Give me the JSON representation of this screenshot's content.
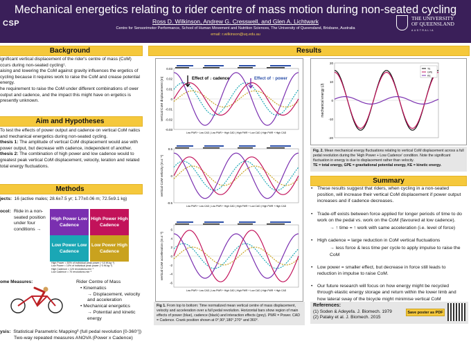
{
  "header": {
    "title": "Mechanical energetics relating to rider centre of mass motion during non-seated cycling",
    "authors": "Ross D. Wilkinson, Andrew G. Cresswell, and Glen A. Lichtwark",
    "institution": "Centre for Sensorimotor Performance, School of Human Movement and Nutrition Sciences, The University of Queensland, Brisbane, Australia",
    "email": "email: r.wilkinson@uq.edu.au",
    "left_logo": "CSP",
    "right_logo_line1": "THE UNIVERSITY",
    "right_logo_line2": "OF QUEENSLAND",
    "right_logo_line3": "AUSTRALIA"
  },
  "background": {
    "heading": "Background",
    "p1": "ignificant vertical displacement of the rider's centre of mass (CoM) ccurs during non-seated cycling¹.",
    "p2": "aising and lowering the CoM against gravity influences the ergetics of cycling because it requires work to raise the CoM and crease potential energy.",
    "p3": "he requirement to raise the CoM under different combinations of ower output and cadence, and the impact this might have on ergetics is presently unknown."
  },
  "aims": {
    "heading": "Aim and Hypotheses",
    "p1": "To test the effects of power output and cadence on vertical CoM natics and mechanical energetics during non-seated cycling.",
    "h1_label": "thesis 1:",
    "h1": "The amplitude of vertical CoM displacement would ase with power output, but decrease with cadence, independent of another.",
    "h2_label": "thesis 2:",
    "h2": "The combination of high power and low cadence would to greatest peak vertical CoM displacement, velocity, leration and related total energy fluctuations."
  },
  "methods": {
    "heading": "Methods",
    "subjects_label": "jects:",
    "subjects": "16 (active males; 28.6±7.5 yr; 1.77±0.06 m; 72.5±9.1 kg)",
    "protocol_label": "ocol:",
    "protocol": "Ride in a non-seated position under four conditions →",
    "conditions": [
      {
        "label": "High Power Low Cadence",
        "color": "#7a2fb0"
      },
      {
        "label": "High Power High Cadence",
        "color": "#c2125a"
      },
      {
        "label": "Low Power Low Cadence",
        "color": "#1aa7b5"
      },
      {
        "label": "Low Power High Cadence",
        "color": "#c9a21e"
      }
    ],
    "notes": [
      "High Power = 50% of individual peak power (~10 W.kg⁻¹)",
      "Low Power = 10% of individual peak power (~3 W.kg⁻¹)",
      "High Cadence = 120 revolutions.min⁻¹",
      "Low Cadence = 70 revolutions.min⁻¹"
    ],
    "outcome_label": "ome Measures:",
    "outcome_title": "Rider Centre of Mass",
    "outcome_items": [
      "Kinematics",
      "→ Displacement, velocity and acceleration",
      "Mechanical energetics",
      "→ Potential and kinetic energy"
    ],
    "analysis_label": "ysis:",
    "analysis_line1": "Statistical Parametric Mapping² (full pedal revolution [0-360°])",
    "analysis_line2": "Two-way repeated measures ANOVA (Power x Cadence)"
  },
  "results": {
    "heading": "Results",
    "fig1_caption_bold": "Fig 1.",
    "fig1_caption": "From top to bottom: Time normalized mean vertical centre of mass displacement, velocity and acceleration over a full pedal revolution. Horizontal bars show region of main effects of power (blue), cadence (black) and interaction effects (grey). PWR = Power. CAD = Cadence. Crank position shown at 0°,90°,180°,270° and 360°.",
    "fig2_caption_bold": "Fig. 2.",
    "fig2_caption": "Mean mechanical energy fluctuations relating to vertical CoM displacement across a full pedal revolution during the 'High Power + Low Cadence' condition. Note the significant fluctuation in energy is due to displacement rather than velocity.",
    "fig2_caption2": "TE = total energy, GPE = gravitational potential energy, KE = kinetic energy.",
    "cadence_annotation": "Effect of ↓ cadence",
    "power_annotation": "Effect of ↑ power"
  },
  "summary": {
    "heading": "Summary",
    "items": [
      "These results suggest that riders, when cycling in a non-seated position, will increase their vertical CoM displacement if power output increases and if cadence decreases.",
      "Trade-off exists between force applied for longer periods of time to do work on the pedal vs. work on the CoM (favoured at low cadence).",
      "→ ↑ time = ↑ work with same acceleration (i.e. level of force)",
      "High cadence = large reduction in CoM vertical fluctuations",
      "→ less force & less time per cycle to apply impulse to raise the CoM",
      "Low power = smaller effect, but decrease in force still leads to reduction in impulse to raise CoM.",
      "Our future research will focus on how energy might be recycled through elastic energy storage and return within the lower limb and how lateral sway of the bicycle might minimise vertical CoM displacement during non-seated cycling."
    ]
  },
  "references": {
    "heading": "References:",
    "r1": "(1) Soden & Adeyefa. J. Biomech. 1979",
    "r2": "(2) Pataky et al. J. Biomech. 2015",
    "pdf_button": "Save poster as PDF"
  },
  "chart_data": [
    {
      "type": "line",
      "ylabel": "vertical CoM displacement (m)",
      "ylim": [
        -0.03,
        0.03
      ],
      "yticks": [
        "0.03",
        "0.02",
        "0.01",
        "0",
        "-0.01",
        "-0.02",
        "-0.03"
      ],
      "legend": "Low PWR + Low CAD | Low PWR + High CAD | High PWR + Low CAD | High PWR + High CAD",
      "series": [
        {
          "name": "Low PWR + Low CAD",
          "color": "#1aa7b5",
          "amp": 0.016,
          "phase": 0.15
        },
        {
          "name": "Low PWR + High CAD",
          "color": "#c9a21e",
          "amp": 0.008,
          "phase": 0.3
        },
        {
          "name": "High PWR + Low CAD",
          "color": "#7a2fb0",
          "amp": 0.026,
          "phase": 0.0
        },
        {
          "name": "High PWR + High CAD",
          "color": "#c2125a",
          "amp": 0.016,
          "phase": 0.25
        }
      ]
    },
    {
      "type": "line",
      "ylabel": "vertical CoM velocity (m.s⁻¹)",
      "ylim": [
        -0.5,
        0.5
      ],
      "yticks": [
        "0.5",
        "0",
        "-0.5"
      ],
      "legend": "Low PWR + Low CAD | Low PWR + High CAD | High PWR + Low CAD | High PWR + High CAD",
      "series": [
        {
          "name": "Low PWR + Low CAD",
          "color": "#1aa7b5",
          "amp": 0.27,
          "phase": 0.15
        },
        {
          "name": "Low PWR + High CAD",
          "color": "#c9a21e",
          "amp": 0.18,
          "phase": 0.3
        },
        {
          "name": "High PWR + Low CAD",
          "color": "#7a2fb0",
          "amp": 0.42,
          "phase": 0.0
        },
        {
          "name": "High PWR + High CAD",
          "color": "#c2125a",
          "amp": 0.35,
          "phase": 0.25
        }
      ]
    },
    {
      "type": "line",
      "ylabel": "vertical CoM acceleration (m.s⁻²)",
      "ylim": [
        -7,
        7
      ],
      "yticks": [
        "6",
        "4",
        "2",
        "0",
        "-2",
        "-4",
        "-6"
      ],
      "legend": "Low PWR + Low CAD | Low PWR + High CAD | High PWR + Low CAD | High PWR + High CAD",
      "series": [
        {
          "name": "Low PWR + Low CAD",
          "color": "#1aa7b5",
          "amp": 2.8,
          "phase": 0.15
        },
        {
          "name": "Low PWR + High CAD",
          "color": "#c9a21e",
          "amp": 2.0,
          "phase": 0.3
        },
        {
          "name": "High PWR + Low CAD",
          "color": "#7a2fb0",
          "amp": 5.0,
          "phase": 0.0
        },
        {
          "name": "High PWR + High CAD",
          "color": "#c2125a",
          "amp": 5.8,
          "phase": 0.25
        }
      ]
    },
    {
      "type": "line",
      "ylabel": "mechanical energy (J)",
      "ylim": [
        -20,
        20
      ],
      "yticks": [
        "20",
        "10",
        "0",
        "-10",
        "-20"
      ],
      "series": [
        {
          "name": "TE",
          "color": "#111111",
          "amp": 16,
          "phase": 0.0
        },
        {
          "name": "GPE",
          "color": "#c2125a",
          "amp": 15,
          "phase": 0.0
        },
        {
          "name": "KE",
          "color": "#7a2fb0",
          "amp": 2,
          "phase": 0.2
        }
      ]
    }
  ]
}
